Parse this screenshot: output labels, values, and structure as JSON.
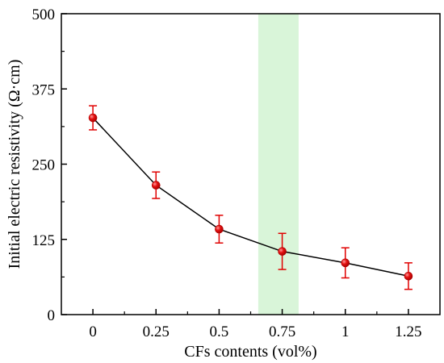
{
  "chart_data": {
    "type": "scatter",
    "xlabel": "CFs contents (vol%)",
    "ylabel": "Initial electric resistivity (Ω·cm)",
    "x_ticks": [
      "0",
      "0.25",
      "0.5",
      "0.75",
      "1",
      "1.25"
    ],
    "y_ticks": [
      "0",
      "125",
      "250",
      "375",
      "500"
    ],
    "xlim": [
      -0.125,
      1.375
    ],
    "ylim": [
      0,
      500
    ],
    "series": [
      {
        "x": [
          0,
          0.25,
          0.5,
          0.75,
          1.0,
          1.25
        ],
        "y": [
          327,
          215,
          142,
          105,
          86,
          64
        ],
        "error": [
          20,
          22,
          23,
          30,
          25,
          22
        ],
        "connected": true
      }
    ],
    "highlight_band": {
      "x_range": [
        0.655,
        0.815
      ],
      "color": "#d9f5d9"
    },
    "marker_color": "#e00000",
    "line_color": "#000000",
    "grid": false,
    "legend": false
  }
}
